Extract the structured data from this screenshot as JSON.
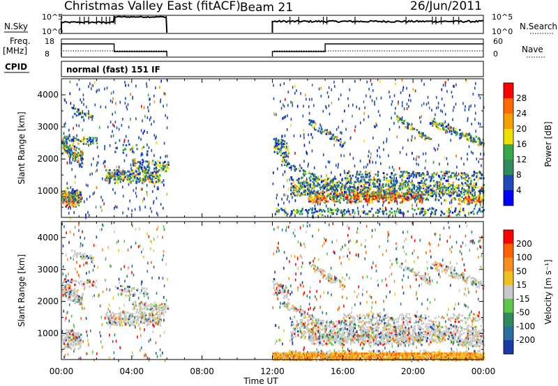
{
  "header": {
    "site_title": "Christmas Valley East (fitACF)",
    "beam": "Beam 21",
    "date": "26/Jun/2011"
  },
  "summary": {
    "nsky_label": "N.Sky",
    "nsearch_label": "N.Search",
    "freq_label_1": "Freq.",
    "freq_label_2": "[MHz]",
    "nave_label": "Nave",
    "cpid_label": "CPID",
    "nsky_ticks": [
      "10^5",
      "10^0"
    ],
    "nsearch_ticks": [
      "10^5",
      "10^0"
    ],
    "freq_ticks": [
      "18",
      "8"
    ],
    "nave_ticks": [
      "60",
      "0"
    ],
    "cpid_text": "normal (fast) 151 IF"
  },
  "chart_data": [
    {
      "type": "heatmap",
      "panel": "power",
      "ylabel": "Slant Range [km]",
      "ylim": [
        180,
        4500
      ],
      "yticks": [
        "1000",
        "2000",
        "3000",
        "4000"
      ],
      "colorbar_label": "Power [dB]",
      "colorbar_ticks": [
        "28",
        "24",
        "20",
        "16",
        "12",
        "8",
        "4"
      ],
      "colors": [
        "#0000ff",
        "#1d4ab5",
        "#2f8a5c",
        "#35a84c",
        "#f0e000",
        "#f5a000",
        "#ff6a00",
        "#ff0000"
      ],
      "data_gap_ut": [
        "06:00",
        "12:00"
      ]
    },
    {
      "type": "heatmap",
      "panel": "velocity",
      "ylabel": "Slant Range [km]",
      "ylim": [
        180,
        4500
      ],
      "yticks": [
        "1000",
        "2000",
        "3000",
        "4000"
      ],
      "colorbar_label": "Velocity [m s⁻¹]",
      "colorbar_ticks": [
        "200",
        "100",
        "50",
        "15",
        "-15",
        "-50",
        "-100",
        "-200"
      ],
      "colors": [
        "#1a3aa8",
        "#2a6fa0",
        "#2f8a5c",
        "#5cc84a",
        "#c8c8c8",
        "#f0c020",
        "#f59020",
        "#ff6000",
        "#ff0000"
      ],
      "data_gap_ut": [
        "06:00",
        "12:00"
      ]
    }
  ],
  "time_axis": {
    "labels": [
      "00:00",
      "04:00",
      "08:00",
      "12:00",
      "16:00",
      "20:00",
      "00:00"
    ],
    "xlabel": "Time UT"
  }
}
